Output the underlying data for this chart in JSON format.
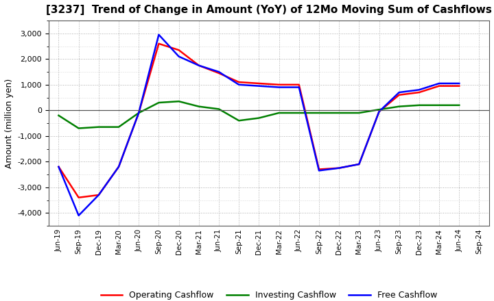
{
  "title": "[3237]  Trend of Change in Amount (YoY) of 12Mo Moving Sum of Cashflows",
  "ylabel": "Amount (million yen)",
  "xlabels": [
    "Jun-19",
    "Sep-19",
    "Dec-19",
    "Mar-20",
    "Jun-20",
    "Sep-20",
    "Dec-20",
    "Mar-21",
    "Jun-21",
    "Sep-21",
    "Dec-21",
    "Mar-22",
    "Jun-22",
    "Sep-22",
    "Dec-22",
    "Mar-23",
    "Jun-23",
    "Sep-23",
    "Dec-23",
    "Mar-24",
    "Jun-24",
    "Sep-24"
  ],
  "operating": [
    -2200,
    -3400,
    -3300,
    -2200,
    -100,
    2600,
    2350,
    1750,
    1450,
    1100,
    1050,
    1000,
    1000,
    -2300,
    -2250,
    -2100,
    -50,
    600,
    700,
    950,
    950,
    null
  ],
  "investing": [
    -200,
    -700,
    -650,
    -650,
    -100,
    300,
    350,
    150,
    50,
    -400,
    -300,
    -100,
    -100,
    -100,
    -100,
    -100,
    30,
    150,
    200,
    200,
    200,
    null
  ],
  "free": [
    -2200,
    -4100,
    -3300,
    -2200,
    -100,
    2950,
    2100,
    1750,
    1500,
    1000,
    950,
    900,
    900,
    -2350,
    -2250,
    -2100,
    -50,
    700,
    800,
    1050,
    1050,
    null
  ],
  "operating_color": "#FF0000",
  "investing_color": "#008000",
  "free_color": "#0000FF",
  "ylim": [
    -4500,
    3500
  ],
  "yticks": [
    -4000,
    -3000,
    -2000,
    -1000,
    0,
    1000,
    2000,
    3000
  ],
  "background_color": "#FFFFFF",
  "grid_color": "#AAAAAA",
  "legend_labels": [
    "Operating Cashflow",
    "Investing Cashflow",
    "Free Cashflow"
  ]
}
